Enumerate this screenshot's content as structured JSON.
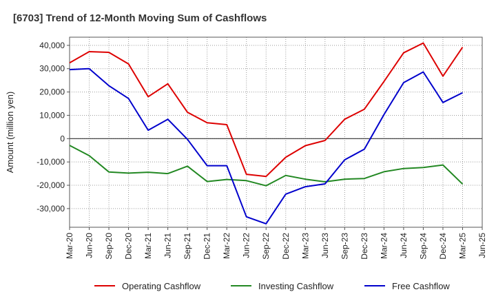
{
  "chart_data": {
    "type": "line",
    "title": "[6703]  Trend of 12-Month Moving Sum of Cashflows",
    "xlabel": "",
    "ylabel": "Amount (million yen)",
    "categories": [
      "Mar-20",
      "Jun-20",
      "Sep-20",
      "Dec-20",
      "Mar-21",
      "Jun-21",
      "Sep-21",
      "Dec-21",
      "Mar-22",
      "Jun-22",
      "Sep-22",
      "Dec-22",
      "Mar-23",
      "Jun-23",
      "Sep-23",
      "Dec-23",
      "Mar-24",
      "Jun-24",
      "Sep-24",
      "Dec-24",
      "Mar-25",
      "Jun-25"
    ],
    "yticks": [
      40000,
      30000,
      20000,
      10000,
      0,
      -10000,
      -20000,
      -30000
    ],
    "ytick_labels": [
      "40,000",
      "30,000",
      "20,000",
      "10,000",
      "0",
      "-10,000",
      "-20,000",
      "-30,000"
    ],
    "ylim": [
      -38000,
      43500
    ],
    "grid": true,
    "legend_position": "bottom",
    "series": [
      {
        "name": "Operating Cashflow",
        "color": "#dd0000",
        "values": [
          32500,
          37300,
          37000,
          32000,
          18000,
          23500,
          11300,
          6800,
          6000,
          -15300,
          -16200,
          -8000,
          -3000,
          -800,
          8300,
          12600,
          24500,
          36800,
          41000,
          26800,
          39200,
          null
        ]
      },
      {
        "name": "Investing Cashflow",
        "color": "#228822",
        "values": [
          -2900,
          -7300,
          -14300,
          -14800,
          -14400,
          -15000,
          -11800,
          -18400,
          -17500,
          -18000,
          -20200,
          -15800,
          -17400,
          -18500,
          -17400,
          -17100,
          -14200,
          -12800,
          -12400,
          -11300,
          -19500,
          null
        ]
      },
      {
        "name": "Free Cashflow",
        "color": "#0000cc",
        "values": [
          29600,
          30000,
          22700,
          17200,
          3600,
          8300,
          -300,
          -11600,
          -11600,
          -33500,
          -36500,
          -23800,
          -20600,
          -19400,
          -9100,
          -4500,
          10300,
          24000,
          28600,
          15500,
          19700,
          null
        ]
      }
    ]
  }
}
